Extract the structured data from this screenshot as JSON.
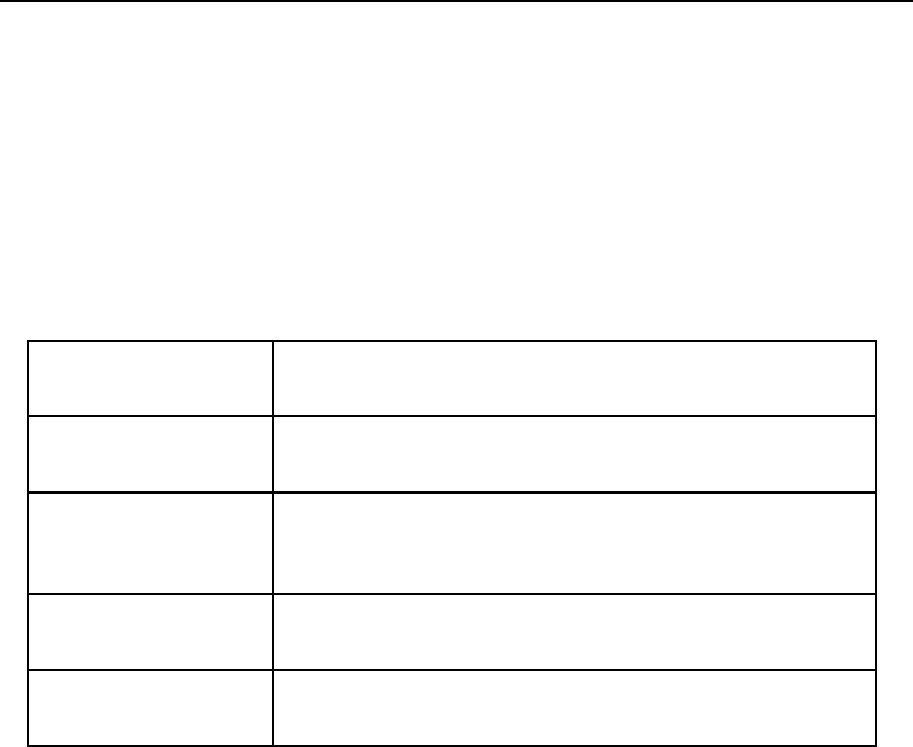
{
  "document": {
    "table": {
      "rows": [
        {
          "cells": [
            "",
            ""
          ]
        },
        {
          "cells": [
            "",
            ""
          ]
        },
        {
          "cells": [
            "",
            ""
          ]
        },
        {
          "cells": [
            "",
            ""
          ]
        },
        {
          "cells": [
            "",
            ""
          ]
        }
      ]
    }
  }
}
